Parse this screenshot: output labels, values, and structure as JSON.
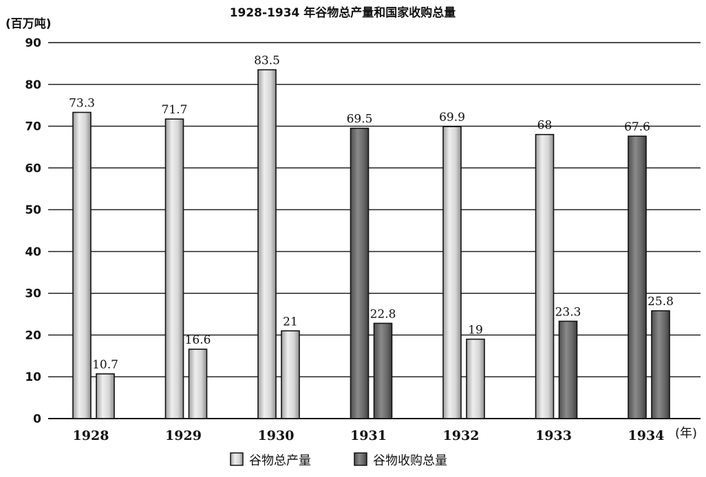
{
  "chart_data": {
    "type": "bar",
    "title": "1928-1934 年谷物总产量和国家收购总量",
    "ylabel": "(百万吨)",
    "xlabel": "(年)",
    "categories": [
      "1928",
      "1929",
      "1930",
      "1931",
      "1932",
      "1933",
      "1934"
    ],
    "ylim": [
      0,
      90
    ],
    "yticks": [
      0,
      10,
      20,
      30,
      40,
      50,
      60,
      70,
      80,
      90
    ],
    "grid": true,
    "legend_position": "bottom-center",
    "series": [
      {
        "name": "谷物总产量",
        "values": [
          73.3,
          71.7,
          83.5,
          69.5,
          69.9,
          68,
          67.6
        ],
        "value_labels": [
          "73.3",
          "71.7",
          "83.5",
          "69.5",
          "69.9",
          "68",
          "67.6"
        ],
        "bar_colors": [
          "light",
          "light",
          "light",
          "dark",
          "light",
          "light",
          "dark"
        ]
      },
      {
        "name": "谷物收购总量",
        "legend_label": "谷物收购总量",
        "values": [
          10.7,
          16.6,
          21,
          22.8,
          19,
          23.3,
          25.8
        ],
        "value_labels": [
          "10.7",
          "16.6",
          "21",
          "22.8",
          "19",
          "23.3",
          "25.8"
        ],
        "bar_colors": [
          "light",
          "light",
          "light",
          "dark",
          "light",
          "dark",
          "dark"
        ]
      }
    ],
    "colors": {
      "light_bar": "#d9d9d9",
      "dark_bar": "#6e6e6e",
      "grid": "#111111"
    }
  }
}
